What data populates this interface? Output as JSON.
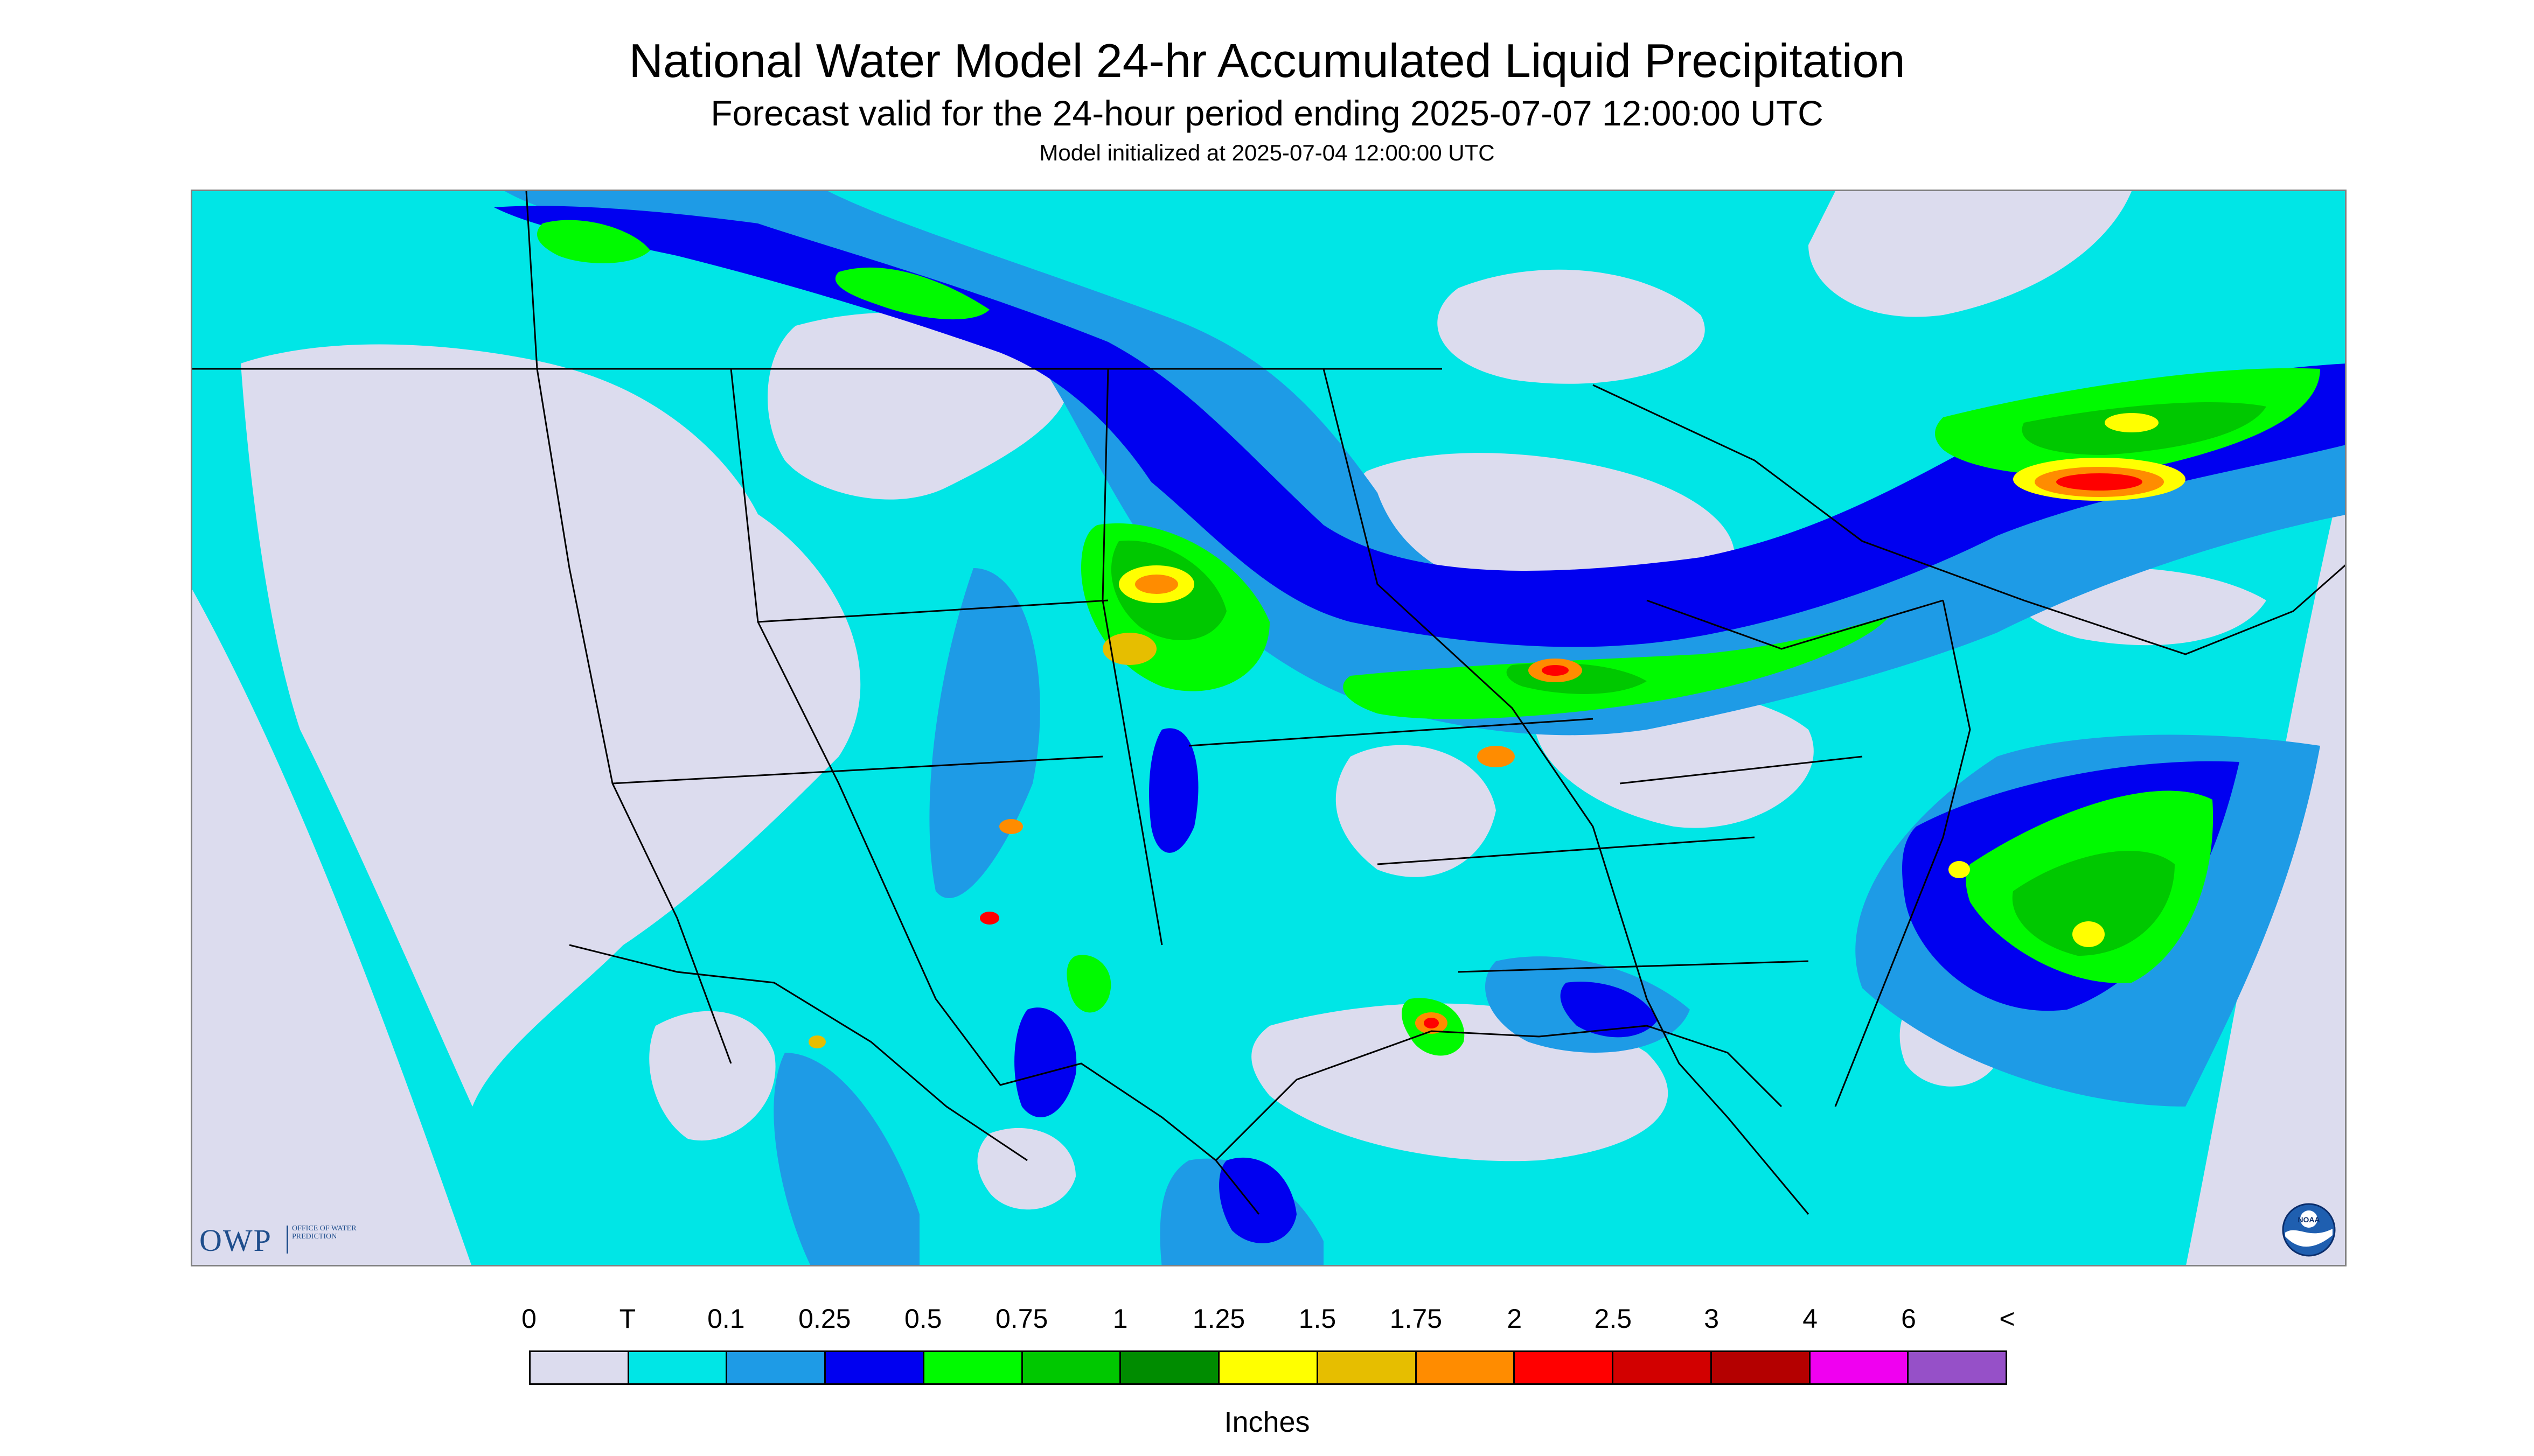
{
  "title": "National Water Model 24-hr Accumulated Liquid Precipitation",
  "subtitle": "Forecast valid for the 24-hour period ending 2025-07-07 12:00:00 UTC",
  "init_note": "Model initialized at 2025-07-04 12:00:00 UTC",
  "logos": {
    "owp_text": "OWP",
    "owp_subtext": "OFFICE OF WATER PREDICTION",
    "noaa_text": "NOAA"
  },
  "legend": {
    "labels": [
      "0",
      "T",
      "0.1",
      "0.25",
      "0.5",
      "0.75",
      "1",
      "1.25",
      "1.5",
      "1.75",
      "2",
      "2.5",
      "3",
      "4",
      "6",
      "<"
    ],
    "colors": [
      "#dcdcee",
      "#00e6e6",
      "#1e9be6",
      "#0000f0",
      "#00fa00",
      "#00c800",
      "#008c00",
      "#ffff00",
      "#e6be00",
      "#ff8c00",
      "#ff0000",
      "#d20000",
      "#b40000",
      "#f000f0",
      "#9650c8"
    ],
    "units": "Inches"
  },
  "map": {
    "background_color": "#dcdcee",
    "region": "Continental United States, southern Canada, northern Mexico",
    "features": [
      "heavy rain band across Great Lakes and Ohio Valley",
      "heavy rain over southern Quebec / northern New England",
      "rain over Carolinas and offshore Atlantic",
      "scattered storms on Gulf coast (Louisiana)",
      "rain along Rocky Mountain front (Colorado / New Mexico)"
    ]
  }
}
